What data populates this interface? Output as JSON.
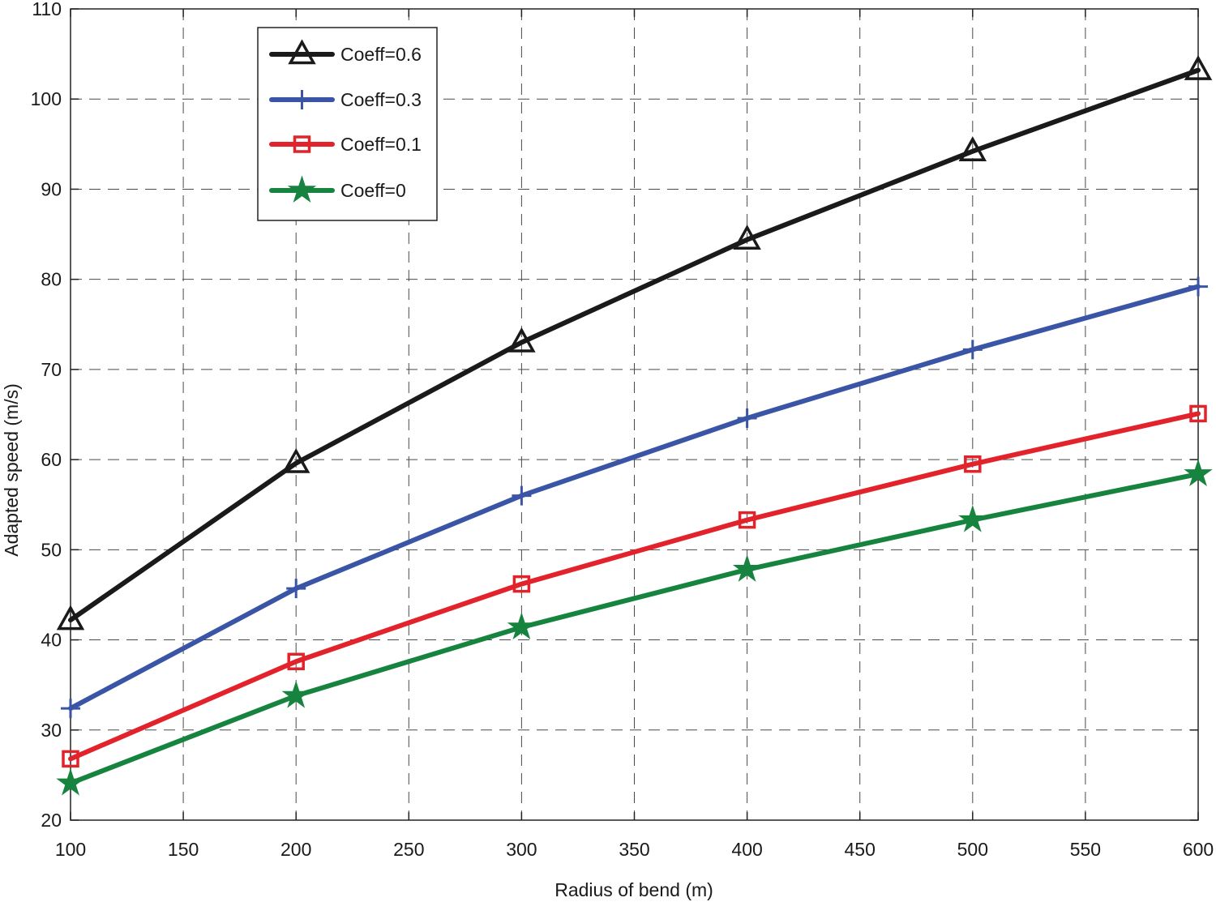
{
  "chart_data": {
    "type": "line",
    "title": "",
    "xlabel": "Radius of bend (m)",
    "ylabel": "Adapted speed (m/s)",
    "xlim": [
      100,
      600
    ],
    "ylim": [
      20,
      110
    ],
    "xticks": [
      100,
      150,
      200,
      250,
      300,
      350,
      400,
      450,
      500,
      550,
      600
    ],
    "yticks": [
      20,
      30,
      40,
      50,
      60,
      70,
      80,
      90,
      100,
      110
    ],
    "grid": true,
    "legend_position": "top-left",
    "x": [
      100,
      200,
      300,
      400,
      500,
      600
    ],
    "series": [
      {
        "name": "Coeff=0.6",
        "color": "#1a1a1a",
        "marker": "triangle",
        "values": [
          42.2,
          59.6,
          73.0,
          84.4,
          94.2,
          103.2
        ]
      },
      {
        "name": "Coeff=0.3",
        "color": "#3a55a6",
        "marker": "plus",
        "values": [
          32.4,
          45.7,
          56.0,
          64.6,
          72.2,
          79.2
        ]
      },
      {
        "name": "Coeff=0.1",
        "color": "#e3232b",
        "marker": "square",
        "values": [
          26.8,
          37.6,
          46.2,
          53.3,
          59.5,
          65.1
        ]
      },
      {
        "name": "Coeff=0",
        "color": "#16843e",
        "marker": "star",
        "values": [
          24.1,
          33.8,
          41.4,
          47.8,
          53.3,
          58.4
        ]
      }
    ]
  }
}
